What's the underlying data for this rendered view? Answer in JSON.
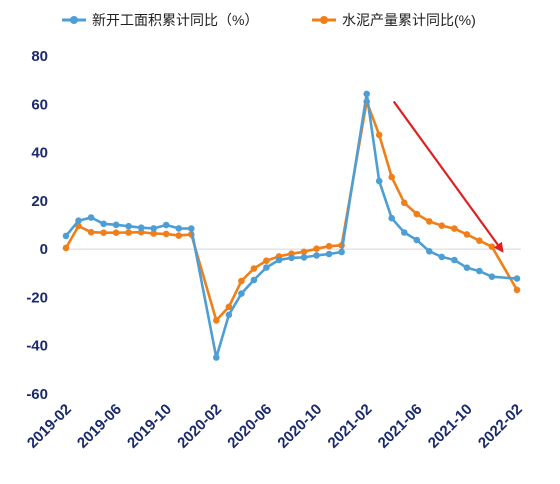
{
  "chart_data": {
    "type": "line",
    "ylim": [
      -60,
      80
    ],
    "yticks": [
      80,
      60,
      40,
      20,
      0,
      -20,
      -40,
      -60
    ],
    "xtick_labels": [
      "2019-02",
      "2019-06",
      "2019-10",
      "2020-02",
      "2020-06",
      "2020-10",
      "2021-02",
      "2021-06",
      "2021-10",
      "2022-02"
    ],
    "x": [
      "2019-02",
      "2019-03",
      "2019-04",
      "2019-05",
      "2019-06",
      "2019-07",
      "2019-08",
      "2019-09",
      "2019-10",
      "2019-11",
      "2019-12",
      "2020-01",
      "2020-02",
      "2020-03",
      "2020-04",
      "2020-05",
      "2020-06",
      "2020-07",
      "2020-08",
      "2020-09",
      "2020-10",
      "2020-11",
      "2020-12",
      "2021-01",
      "2021-02",
      "2021-03",
      "2021-04",
      "2021-05",
      "2021-06",
      "2021-07",
      "2021-08",
      "2021-09",
      "2021-10",
      "2021-11",
      "2021-12",
      "2022-01",
      "2022-02"
    ],
    "series": [
      {
        "name": "新开工面积累计同比（%）",
        "color": "#4e9ed6",
        "values": [
          5.5,
          11.8,
          13.1,
          10.5,
          10.1,
          9.5,
          8.9,
          8.6,
          10.0,
          8.6,
          8.5,
          null,
          -44.9,
          -27.2,
          -18.4,
          -12.8,
          -7.6,
          -4.5,
          -3.6,
          -3.4,
          -2.6,
          -2.0,
          -1.2,
          null,
          64.3,
          28.2,
          12.8,
          6.9,
          3.8,
          -0.9,
          -3.2,
          -4.5,
          -7.7,
          -9.1,
          -11.4,
          null,
          -12.2
        ]
      },
      {
        "name": "水泥产量累计同比(%)",
        "color": "#f07f1a",
        "values": [
          0.5,
          9.6,
          7.0,
          6.8,
          6.8,
          6.9,
          7.0,
          6.5,
          6.3,
          5.6,
          6.1,
          null,
          -29.5,
          -23.9,
          -13.2,
          -8.0,
          -4.8,
          -3.0,
          -1.9,
          -1.1,
          0.2,
          1.2,
          1.6,
          null,
          61.1,
          47.3,
          29.9,
          19.2,
          14.5,
          11.5,
          9.7,
          8.5,
          6.1,
          3.5,
          1.0,
          null,
          -16.9
        ]
      }
    ],
    "annotation": {
      "type": "arrow",
      "color": "#e02020",
      "from": [
        "2021-04",
        62
      ],
      "to": [
        "2022-01",
        0
      ]
    }
  },
  "legend": {
    "items": [
      {
        "label": "新开工面积累计同比（%）",
        "color": "#4e9ed6"
      },
      {
        "label": "水泥产量累计同比(%)",
        "color": "#f07f1a"
      }
    ]
  }
}
